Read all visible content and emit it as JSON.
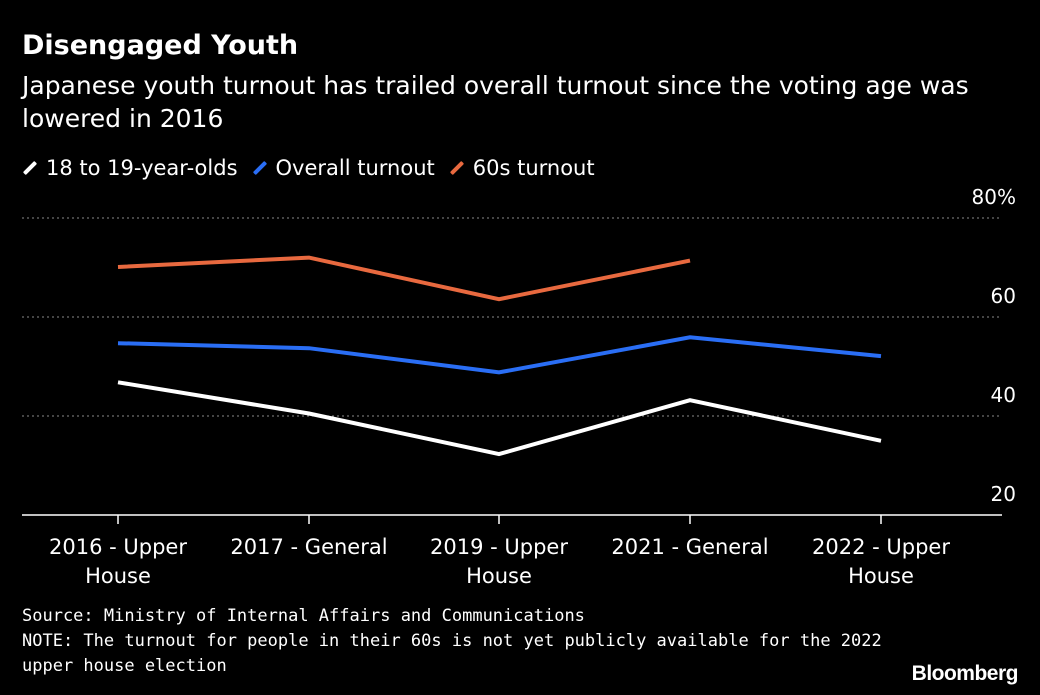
{
  "header": {
    "title": "Disengaged Youth",
    "subtitle": "Japanese youth turnout has trailed overall turnout since the voting age was lowered in 2016"
  },
  "legend": [
    {
      "label": "18 to 19-year-olds",
      "color": "#ffffff"
    },
    {
      "label": "Overall turnout",
      "color": "#2a6ef5"
    },
    {
      "label": "60s turnout",
      "color": "#e8693f"
    }
  ],
  "footer": {
    "source": "Source: Ministry of Internal Affairs and Communications",
    "note_line1": "NOTE: The turnout for people in their 60s is not yet publicly available for the 2022",
    "note_line2": "upper house election",
    "brand": "Bloomberg"
  },
  "chart_data": {
    "type": "line",
    "title": "Disengaged Youth",
    "subtitle": "Japanese youth turnout has trailed overall turnout since the voting age was lowered in 2016",
    "categories": [
      [
        "2016 - Upper",
        "House"
      ],
      [
        "2017 - General"
      ],
      [
        "2019 - Upper",
        "House"
      ],
      [
        "2021 - General"
      ],
      [
        "2022 - Upper",
        "House"
      ]
    ],
    "series": [
      {
        "name": "18 to 19-year-olds",
        "color": "#ffffff",
        "values": [
          46.8,
          40.5,
          32.3,
          43.2,
          35.0
        ]
      },
      {
        "name": "Overall turnout",
        "color": "#2a6ef5",
        "values": [
          54.7,
          53.7,
          48.8,
          55.9,
          52.1
        ]
      },
      {
        "name": "60s turnout",
        "color": "#e8693f",
        "values": [
          70.1,
          72.0,
          63.6,
          71.4,
          null
        ]
      }
    ],
    "yticks": [
      20,
      40,
      60,
      80
    ],
    "ytick_labels": [
      "20",
      "40",
      "60",
      "80%"
    ],
    "ylim": [
      20,
      80
    ],
    "grid": true,
    "xlabel": "",
    "ylabel": ""
  }
}
